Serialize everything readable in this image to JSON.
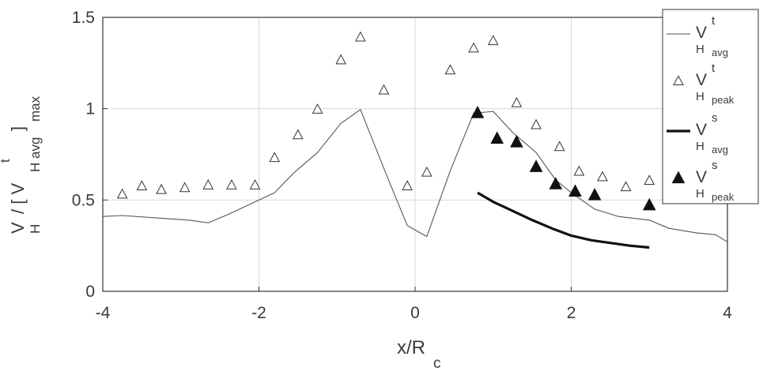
{
  "chart_data": {
    "type": "line",
    "xlabel": "x/R",
    "xlabel_sub": "c",
    "ylabel_parts": {
      "v1": "V",
      "sub1": "H",
      "slash_bracket": "/ [ V",
      "sup2": "t",
      "sub2": "H avg",
      "close": "]",
      "subscript_max": "max"
    },
    "xlim": [
      -4,
      4
    ],
    "ylim": [
      0,
      1.5
    ],
    "xticks": [
      -4,
      -2,
      0,
      2,
      4
    ],
    "xtick_labels": [
      "-4",
      "-2",
      "0",
      "2",
      "4"
    ],
    "yticks": [
      0,
      0.5,
      1,
      1.5
    ],
    "ytick_labels": [
      "0",
      "0.5",
      "1",
      "1.5"
    ],
    "grid": true,
    "legend_position": "top-right",
    "series": [
      {
        "key": "vt_avg",
        "legend": {
          "base": "V",
          "sup": "t",
          "sub": "H",
          "sub2": "avg"
        },
        "style": "thin-line",
        "color": "#555555",
        "x": [
          -4.0,
          -3.75,
          -3.25,
          -2.9,
          -2.65,
          -2.4,
          -2.1,
          -1.8,
          -1.55,
          -1.25,
          -0.95,
          -0.7,
          -0.35,
          -0.1,
          0.15,
          0.45,
          0.75,
          1.0,
          1.25,
          1.55,
          1.8,
          2.0,
          2.3,
          2.6,
          3.0,
          3.25,
          3.6,
          3.85,
          4.0
        ],
        "y": [
          0.41,
          0.415,
          0.4,
          0.39,
          0.375,
          0.42,
          0.48,
          0.54,
          0.65,
          0.76,
          0.92,
          0.995,
          0.62,
          0.36,
          0.3,
          0.66,
          0.975,
          0.985,
          0.87,
          0.76,
          0.61,
          0.54,
          0.45,
          0.41,
          0.39,
          0.345,
          0.32,
          0.31,
          0.27
        ]
      },
      {
        "key": "vt_peak",
        "legend": {
          "base": "V",
          "sup": "t",
          "sub": "H",
          "sub2": "peak"
        },
        "style": "open-triangle",
        "color": "#333333",
        "x": [
          -3.75,
          -3.5,
          -3.25,
          -2.95,
          -2.65,
          -2.35,
          -2.05,
          -1.8,
          -1.5,
          -1.25,
          -0.95,
          -0.7,
          -0.4,
          -0.1,
          0.15,
          0.45,
          0.75,
          1.0,
          1.3,
          1.55,
          1.85,
          2.1,
          2.4,
          2.7,
          3.0
        ],
        "y": [
          0.53,
          0.575,
          0.555,
          0.565,
          0.58,
          0.58,
          0.58,
          0.73,
          0.855,
          0.995,
          1.265,
          1.39,
          1.1,
          0.575,
          0.65,
          1.21,
          1.33,
          1.37,
          1.03,
          0.91,
          0.79,
          0.655,
          0.625,
          0.57,
          0.605
        ]
      },
      {
        "key": "vs_avg",
        "legend": {
          "base": "V",
          "sup": "s",
          "sub": "H",
          "sub2": "avg"
        },
        "style": "thick-line",
        "color": "#111111",
        "x": [
          0.8,
          1.0,
          1.25,
          1.5,
          1.75,
          2.0,
          2.25,
          2.5,
          2.75,
          3.0
        ],
        "y": [
          0.54,
          0.49,
          0.44,
          0.39,
          0.345,
          0.305,
          0.28,
          0.265,
          0.25,
          0.24
        ]
      },
      {
        "key": "vs_peak",
        "legend": {
          "base": "V",
          "sup": "s",
          "sub": "H",
          "sub2": "peak"
        },
        "style": "filled-triangle",
        "color": "#111111",
        "x": [
          0.8,
          1.05,
          1.3,
          1.55,
          1.8,
          2.05,
          2.3,
          3.0
        ],
        "y": [
          0.975,
          0.835,
          0.815,
          0.68,
          0.585,
          0.545,
          0.525,
          0.47
        ]
      }
    ]
  }
}
